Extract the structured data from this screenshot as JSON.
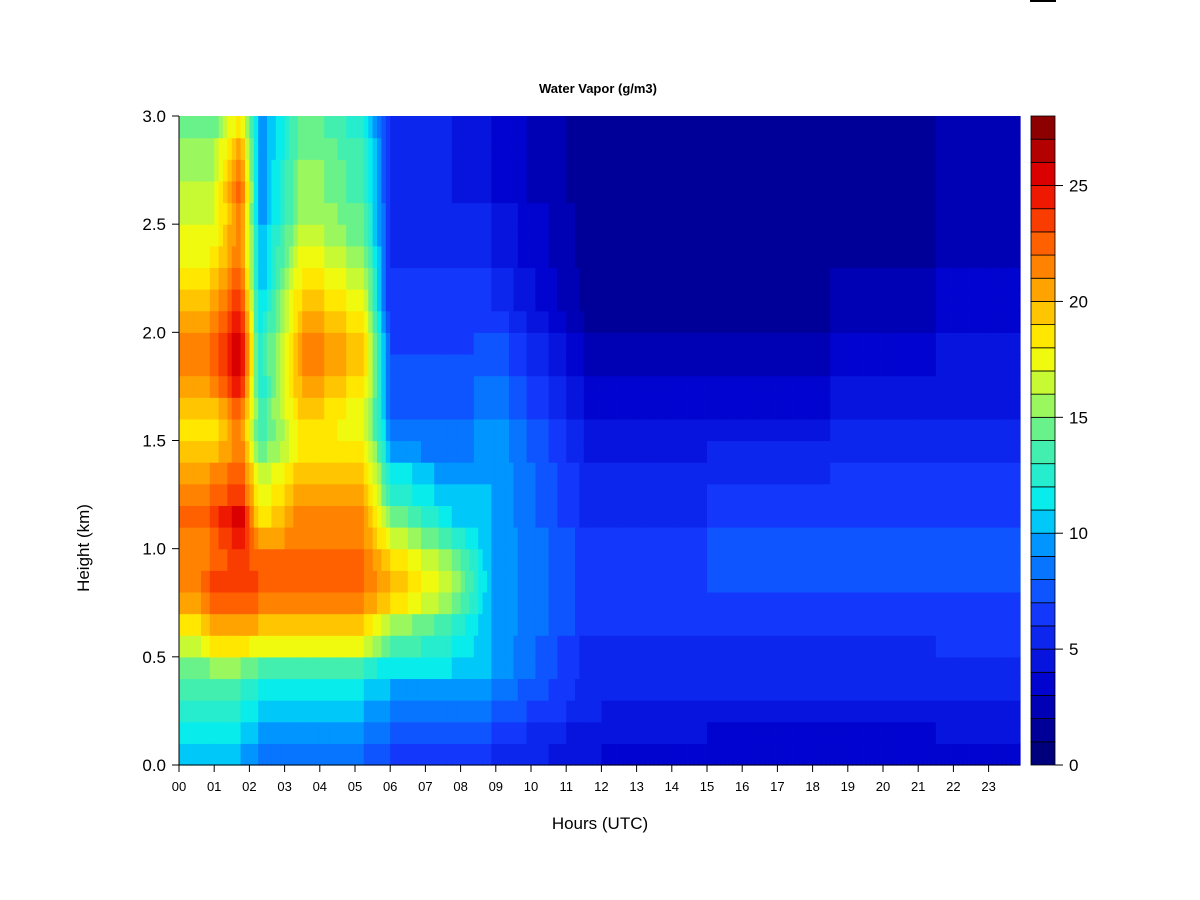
{
  "chart_data": {
    "type": "heatmap",
    "title": "Water Vapor (g/m3)",
    "xlabel": "Hours (UTC)",
    "ylabel": "Height (km)",
    "x_ticks": [
      "00",
      "01",
      "02",
      "03",
      "04",
      "05",
      "06",
      "07",
      "08",
      "09",
      "10",
      "11",
      "12",
      "13",
      "14",
      "15",
      "16",
      "17",
      "18",
      "19",
      "20",
      "21",
      "22",
      "23"
    ],
    "y_ticks": [
      "0.0",
      "0.5",
      "1.0",
      "1.5",
      "2.0",
      "2.5",
      "3.0"
    ],
    "xlim": [
      0,
      24
    ],
    "ylim": [
      0,
      3.0
    ],
    "colorbar": {
      "range": [
        0,
        28
      ],
      "levels": 28,
      "tick_values": [
        0,
        5,
        10,
        15,
        20,
        25
      ],
      "tick_labels": [
        "0",
        "5",
        "10",
        "15",
        "20",
        "25"
      ]
    },
    "hours": [
      0.0,
      0.5,
      1.0,
      1.5,
      2.0,
      2.5,
      3.0,
      3.5,
      4.0,
      4.5,
      5.0,
      5.5,
      6.0,
      6.5,
      7.0,
      7.5,
      8.0,
      8.5,
      9.0,
      9.5,
      10.0,
      10.5,
      11.0,
      11.5,
      12.0,
      12.5,
      13.0,
      13.5,
      14.0,
      14.5,
      15.0,
      15.5,
      16.0,
      16.5,
      17.0,
      17.5,
      18.0,
      18.5,
      19.0,
      19.5,
      20.0,
      20.5,
      21.0,
      21.5,
      22.0,
      22.5,
      23.0,
      23.5,
      23.8
    ],
    "heights_km": [
      0.0,
      0.1,
      0.2,
      0.3,
      0.4,
      0.5,
      0.6,
      0.7,
      0.8,
      0.9,
      1.0,
      1.1,
      1.2,
      1.3,
      1.4,
      1.5,
      1.6,
      1.7,
      1.8,
      1.9,
      2.0,
      2.1,
      2.2,
      2.3,
      2.4,
      2.5,
      2.6,
      2.7,
      2.8,
      2.9,
      3.0
    ],
    "profiles": [
      {
        "hour": 0.3,
        "value_g_m3": [
          10,
          11,
          12,
          13,
          14,
          16,
          18,
          20,
          21,
          21,
          21,
          22,
          21,
          20,
          19,
          18,
          19,
          20,
          21,
          21,
          20,
          19,
          18,
          17,
          17,
          16,
          16,
          15,
          15,
          14,
          14
        ]
      },
      {
        "hour": 0.9,
        "value_g_m3": [
          10,
          11,
          12,
          13,
          15,
          18,
          20,
          22,
          23,
          22,
          22,
          23,
          22,
          21,
          19,
          18,
          19,
          21,
          22,
          22,
          21,
          20,
          19,
          18,
          17,
          16,
          16,
          15,
          15,
          14,
          14
        ]
      },
      {
        "hour": 1.75,
        "value_g_m3": [
          10,
          11,
          12,
          13,
          15,
          19,
          21,
          22,
          24,
          24,
          25,
          26,
          24,
          23,
          22,
          22,
          23,
          25,
          26,
          26,
          25,
          24,
          23,
          22,
          22,
          22,
          23,
          22,
          21,
          19,
          18
        ]
      },
      {
        "hour": 2.3,
        "value_g_m3": [
          9,
          10,
          11,
          12,
          14,
          17,
          20,
          22,
          23,
          22,
          20,
          18,
          17,
          16,
          14,
          13,
          13,
          12,
          12,
          12,
          11,
          11,
          10,
          10,
          10,
          9,
          9,
          9,
          9,
          9,
          9
        ]
      },
      {
        "hour": 3.6,
        "value_g_m3": [
          8,
          9,
          10,
          11,
          13,
          17,
          19,
          21,
          22,
          22,
          22,
          22,
          21,
          20,
          19,
          19,
          20,
          21,
          22,
          22,
          21,
          20,
          19,
          18,
          17,
          16,
          16,
          16,
          15,
          15,
          15
        ]
      },
      {
        "hour": 5.3,
        "value_g_m3": [
          8,
          9,
          10,
          11,
          13,
          17,
          19,
          21,
          22,
          22,
          21,
          21,
          20,
          19,
          18,
          17,
          17,
          18,
          19,
          19,
          18,
          17,
          16,
          15,
          14,
          14,
          13,
          13,
          13,
          12,
          12
        ]
      },
      {
        "hour": 6.0,
        "value_g_m3": [
          7,
          8,
          9,
          10,
          11,
          14,
          16,
          19,
          20,
          19,
          17,
          15,
          13,
          12,
          10,
          9,
          8,
          8,
          7,
          7,
          7,
          6,
          6,
          6,
          6,
          6,
          6,
          6,
          6,
          6,
          6
        ]
      },
      {
        "hour": 7.8,
        "value_g_m3": [
          6,
          7,
          8,
          9,
          11,
          12,
          13,
          15,
          16,
          15,
          13,
          11,
          10,
          9,
          8,
          8,
          7,
          7,
          7,
          6,
          6,
          6,
          6,
          5,
          5,
          5,
          5,
          5,
          5,
          5,
          5
        ]
      },
      {
        "hour": 8.9,
        "value_g_m3": [
          6,
          7,
          8,
          9,
          10,
          10,
          10,
          10,
          10,
          10,
          10,
          10,
          10,
          10,
          10,
          10,
          9,
          9,
          8,
          8,
          7,
          6,
          6,
          5,
          5,
          5,
          4,
          4,
          4,
          4,
          4
        ]
      },
      {
        "hour": 12.0,
        "value_g_m3": [
          4,
          4,
          5,
          5,
          5,
          5,
          6,
          6,
          6,
          6,
          6,
          5,
          5,
          5,
          4,
          4,
          3,
          3,
          2,
          2,
          1,
          1,
          1,
          1,
          1,
          1,
          1,
          1,
          1,
          1,
          1
        ]
      },
      {
        "hour": 15.0,
        "value_g_m3": [
          3,
          4,
          4,
          5,
          5,
          5,
          6,
          6,
          7,
          7,
          7,
          6,
          6,
          5,
          5,
          4,
          3,
          3,
          2,
          2,
          1,
          1,
          1,
          1,
          1,
          1,
          1,
          1,
          1,
          1,
          1
        ]
      },
      {
        "hour": 18.5,
        "value_g_m3": [
          3,
          3,
          4,
          5,
          5,
          5,
          6,
          6,
          7,
          7,
          7,
          6,
          6,
          6,
          5,
          5,
          4,
          4,
          3,
          3,
          2,
          2,
          2,
          1,
          1,
          1,
          1,
          1,
          1,
          1,
          1
        ]
      },
      {
        "hour": 21.5,
        "value_g_m3": [
          3,
          4,
          4,
          5,
          5,
          6,
          6,
          6,
          7,
          7,
          7,
          6,
          6,
          6,
          5,
          5,
          4,
          4,
          4,
          4,
          3,
          3,
          3,
          2,
          2,
          2,
          2,
          2,
          2,
          2,
          2
        ]
      }
    ],
    "grid": false,
    "legend": "colorbar-right"
  }
}
